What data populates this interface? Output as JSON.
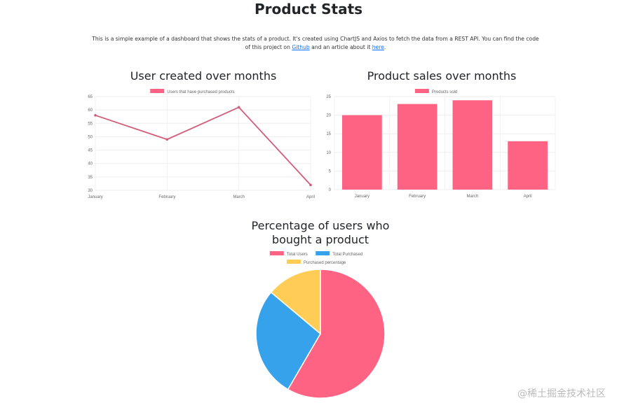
{
  "page": {
    "title": "Product Stats",
    "description_part1": "This is a simple example of a dashboard that shows the stats of a product. It's created using ChartJS and Axios to fetch the data from a REST API. You can find the code of this project on ",
    "github_link": "Github",
    "description_part2": " and an article about it ",
    "here_link": "here",
    "description_end": ".",
    "watermark": "@稀土掘金技术社区"
  },
  "chart_data": [
    {
      "type": "line",
      "title": "User created over months",
      "categories": [
        "January",
        "February",
        "March",
        "April"
      ],
      "series": [
        {
          "name": "Users that have purchased products",
          "values": [
            58,
            49,
            61,
            32
          ],
          "color": "#d35c7a"
        }
      ],
      "ylim": [
        30,
        65
      ],
      "yticks": [
        "65",
        "60",
        "55",
        "50",
        "45",
        "40",
        "35",
        "30"
      ],
      "grid": true,
      "legend": "top"
    },
    {
      "type": "bar",
      "title": "Product sales over months",
      "categories": [
        "January",
        "February",
        "March",
        "April"
      ],
      "series": [
        {
          "name": "Products sold",
          "values": [
            20,
            23,
            24,
            13
          ],
          "color": "#ff6384"
        }
      ],
      "ylim": [
        0,
        25
      ],
      "yticks": [
        "25",
        "20",
        "15",
        "10",
        "5",
        "0"
      ],
      "grid": true,
      "legend": "top"
    },
    {
      "type": "pie",
      "title_line1": "Percentage of users who",
      "title_line2": "bought a product",
      "labels": [
        "Total Users",
        "Total Purchased",
        "Purchased percentage"
      ],
      "values": [
        200,
        95,
        47.5
      ],
      "colors": [
        "#ff6384",
        "#36a2eb",
        "#ffcd56"
      ],
      "legend": "top"
    }
  ]
}
